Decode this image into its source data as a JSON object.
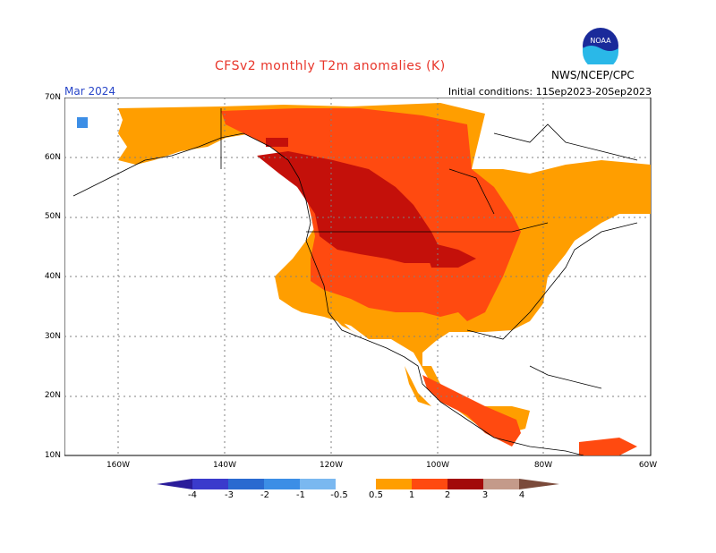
{
  "title": "CFSv2 monthly T2m anomalies (K)",
  "month": "Mar 2024",
  "initial_conditions": "Initial conditions: 11Sep2023-20Sep2023",
  "agency": "NWS/NCEP/CPC",
  "logo_text": "NOAA",
  "lat_labels": [
    "70N",
    "60N",
    "50N",
    "40N",
    "30N",
    "20N",
    "10N"
  ],
  "lon_labels": [
    "160W",
    "140W",
    "120W",
    "100W",
    "80W",
    "60W"
  ],
  "colorbar": {
    "labels": [
      "-4",
      "-3",
      "-2",
      "-1",
      "-0.5",
      "0.5",
      "1",
      "2",
      "3",
      "4"
    ],
    "colors": [
      "#2a1c9a",
      "#3a3acc",
      "#2a6ad0",
      "#3c8ee6",
      "#7ab8f0",
      "#ffffff",
      "#ff9e00",
      "#ff4a10",
      "#e01a0a",
      "#a20a0a",
      "#c49a8a",
      "#7a4a3a"
    ]
  }
}
